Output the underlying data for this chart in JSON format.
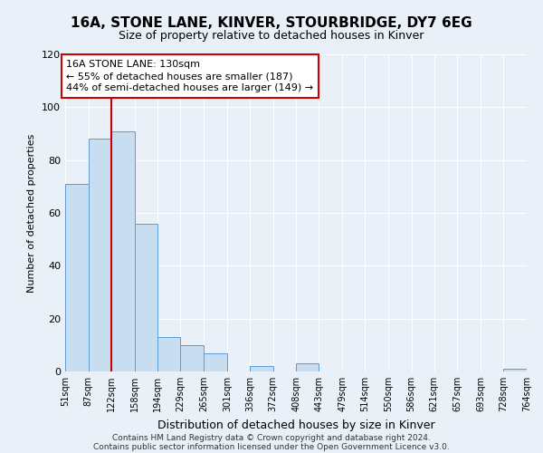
{
  "title": "16A, STONE LANE, KINVER, STOURBRIDGE, DY7 6EG",
  "subtitle": "Size of property relative to detached houses in Kinver",
  "xlabel": "Distribution of detached houses by size in Kinver",
  "ylabel": "Number of detached properties",
  "bin_edges": [
    51,
    87,
    122,
    158,
    194,
    229,
    265,
    301,
    336,
    372,
    408,
    443,
    479,
    514,
    550,
    586,
    621,
    657,
    693,
    728,
    764
  ],
  "bar_heights": [
    71,
    88,
    91,
    56,
    13,
    10,
    7,
    0,
    2,
    0,
    3,
    0,
    0,
    0,
    0,
    0,
    0,
    0,
    0,
    1
  ],
  "bar_color": "#c8ddf0",
  "bar_edge_color": "#5b9bd5",
  "property_line_x": 122,
  "property_line_color": "#cc0000",
  "ylim": [
    0,
    120
  ],
  "yticks": [
    0,
    20,
    40,
    60,
    80,
    100,
    120
  ],
  "annotation_line1": "16A STONE LANE: 130sqm",
  "annotation_line2": "← 55% of detached houses are smaller (187)",
  "annotation_line3": "44% of semi-detached houses are larger (149) →",
  "annotation_box_color": "#ffffff",
  "annotation_box_edge_color": "#cc0000",
  "footer_line1": "Contains HM Land Registry data © Crown copyright and database right 2024.",
  "footer_line2": "Contains public sector information licensed under the Open Government Licence v3.0.",
  "background_color": "#eaf0f8",
  "plot_bg_color": "#eaf0f8",
  "grid_color": "#ffffff",
  "title_fontsize": 11,
  "subtitle_fontsize": 9,
  "xlabel_fontsize": 9,
  "ylabel_fontsize": 8,
  "tick_fontsize": 7,
  "annotation_fontsize": 8,
  "footer_fontsize": 6.5
}
